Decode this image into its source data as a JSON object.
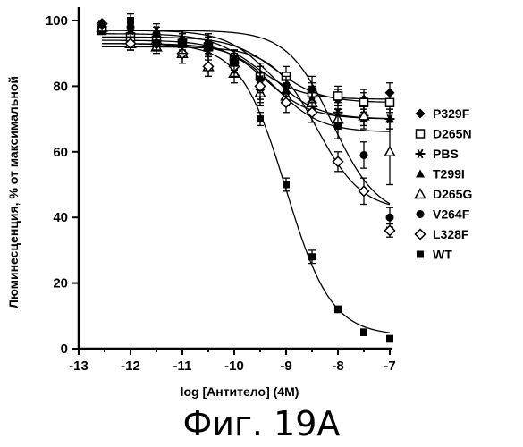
{
  "caption": "Фиг. 19А",
  "chart_data": {
    "type": "scatter",
    "title": "",
    "xlabel": "log [Антитело] (4M)",
    "ylabel": "Люминесценция, % от максимальной",
    "xlim": [
      -13,
      -7
    ],
    "ylim": [
      0,
      100
    ],
    "x_ticks": [
      -13,
      -12,
      -11,
      -10,
      -9,
      -8,
      -7
    ],
    "y_ticks": [
      0,
      20,
      40,
      60,
      80,
      100
    ],
    "legend_position": "right",
    "grid": false,
    "series": [
      {
        "name": "P329F",
        "marker": "diamond-filled",
        "x": [
          -12.55,
          -12,
          -11.5,
          -11,
          -10.5,
          -10,
          -9.5,
          -9,
          -8.5,
          -8,
          -7.5,
          -7
        ],
        "y": [
          99,
          96,
          95,
          94,
          93,
          88,
          79,
          78,
          77,
          76,
          76,
          78
        ],
        "err": [
          0,
          2,
          2,
          3,
          3,
          3,
          4,
          3,
          3,
          3,
          3,
          3
        ],
        "fit": {
          "top": 96,
          "bottom": 76,
          "ec50": -9.6,
          "slope": 1
        }
      },
      {
        "name": "D265N",
        "marker": "square-open",
        "x": [
          -12.55,
          -12,
          -11.5,
          -11,
          -10.5,
          -10,
          -9.5,
          -9,
          -8.5,
          -8,
          -7.5,
          -7
        ],
        "y": [
          97,
          95,
          94,
          93,
          92,
          88,
          83,
          83,
          78,
          77,
          75,
          75
        ],
        "err": [
          0,
          2,
          2,
          3,
          3,
          3,
          4,
          3,
          3,
          3,
          3,
          3
        ],
        "fit": {
          "top": 95,
          "bottom": 75,
          "ec50": -9.2,
          "slope": 1
        }
      },
      {
        "name": "PBS",
        "marker": "asterisk",
        "x": [
          -12.55,
          -12,
          -11.5,
          -11,
          -10.5,
          -10,
          -9.5,
          -9,
          -8.5,
          -8,
          -7.5,
          -7
        ],
        "y": [
          98,
          97,
          97,
          94,
          91,
          88,
          82,
          78,
          75,
          72,
          71,
          70
        ],
        "err": [
          0,
          2,
          2,
          3,
          3,
          3,
          4,
          3,
          3,
          3,
          3,
          3
        ],
        "fit": {
          "top": 97,
          "bottom": 70,
          "ec50": -9.3,
          "slope": 1
        }
      },
      {
        "name": "T299I",
        "marker": "triangle-filled",
        "x": [
          -12.55,
          -12,
          -11.5,
          -11,
          -10.5,
          -10,
          -9.5,
          -9,
          -8.5,
          -8,
          -7.5,
          -7
        ],
        "y": [
          97,
          93,
          93,
          93,
          92,
          88,
          80,
          79,
          76,
          70,
          70,
          70
        ],
        "err": [
          0,
          2,
          2,
          3,
          3,
          3,
          4,
          3,
          3,
          3,
          3,
          3
        ],
        "fit": {
          "top": 94,
          "bottom": 70,
          "ec50": -9.4,
          "slope": 1
        }
      },
      {
        "name": "D265G",
        "marker": "triangle-open",
        "x": [
          -12.55,
          -12,
          -11.5,
          -11,
          -10.5,
          -10,
          -9.5,
          -9,
          -8.5,
          -8,
          -7.5,
          -7
        ],
        "y": [
          98,
          93,
          92,
          90,
          86,
          84,
          78,
          77,
          75,
          70,
          71,
          60
        ],
        "err": [
          0,
          2,
          2,
          3,
          3,
          3,
          4,
          3,
          3,
          3,
          3,
          10
        ],
        "fit": {
          "top": 93,
          "bottom": 66,
          "ec50": -9.2,
          "slope": 1
        }
      },
      {
        "name": "V264F",
        "marker": "circle-filled",
        "x": [
          -12.55,
          -12,
          -11.5,
          -11,
          -10.5,
          -10,
          -9.5,
          -9,
          -8.5,
          -8,
          -7.5,
          -7
        ],
        "y": [
          99,
          98,
          96,
          94,
          92,
          88,
          82,
          80,
          79,
          68,
          59,
          40
        ],
        "err": [
          0,
          2,
          2,
          3,
          3,
          3,
          4,
          3,
          4,
          4,
          4,
          3
        ],
        "fit": {
          "top": 97,
          "bottom": 40,
          "ec50": -8.1,
          "slope": 1
        }
      },
      {
        "name": "L328F",
        "marker": "diamond-open",
        "x": [
          -12.55,
          -12,
          -11.5,
          -11,
          -10.5,
          -10,
          -9.5,
          -9,
          -8.5,
          -8,
          -7.5,
          -7
        ],
        "y": [
          99,
          93,
          93,
          90,
          86,
          86,
          80,
          75,
          72,
          57,
          48,
          36
        ],
        "err": [
          0,
          2,
          2,
          3,
          3,
          3,
          4,
          3,
          3,
          3,
          4,
          2
        ],
        "fit": {
          "top": 92,
          "bottom": 42,
          "ec50": -8.4,
          "slope": 1
        }
      },
      {
        "name": "WT",
        "marker": "square-filled",
        "x": [
          -12.55,
          -12,
          -11.5,
          -11,
          -10.5,
          -10,
          -9.5,
          -9,
          -8.5,
          -8,
          -7.5,
          -7
        ],
        "y": [
          99,
          100,
          93,
          93,
          93,
          87,
          70,
          50,
          28,
          12,
          5,
          3
        ],
        "err": [
          1,
          2,
          2,
          3,
          3,
          3,
          2,
          2,
          2,
          1,
          1,
          1
        ],
        "fit": {
          "top": 93,
          "bottom": 4,
          "ec50": -9.0,
          "slope": 1
        }
      }
    ]
  }
}
